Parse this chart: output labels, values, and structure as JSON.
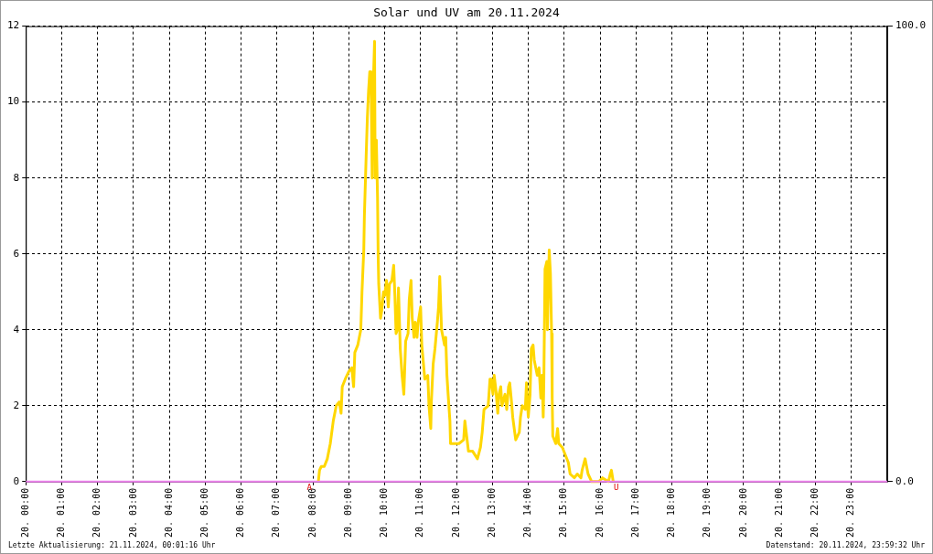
{
  "chart_data": {
    "type": "line",
    "title": "Solar und UV am 20.11.2024",
    "xlim": [
      "2024-11-20T00:00",
      "2024-11-21T00:00"
    ],
    "xticks": [
      {
        "value": "2024-11-20T00:00",
        "label": "20. 00:00"
      },
      {
        "value": "2024-11-20T01:00",
        "label": "20. 01:00"
      },
      {
        "value": "2024-11-20T02:00",
        "label": "20. 02:00"
      },
      {
        "value": "2024-11-20T03:00",
        "label": "20. 03:00"
      },
      {
        "value": "2024-11-20T04:00",
        "label": "20. 04:00"
      },
      {
        "value": "2024-11-20T05:00",
        "label": "20. 05:00"
      },
      {
        "value": "2024-11-20T06:00",
        "label": "20. 06:00"
      },
      {
        "value": "2024-11-20T07:00",
        "label": "20. 07:00"
      },
      {
        "value": "2024-11-20T08:00",
        "label": "20. 08:00"
      },
      {
        "value": "2024-11-20T09:00",
        "label": "20. 09:00"
      },
      {
        "value": "2024-11-20T10:00",
        "label": "20. 10:00"
      },
      {
        "value": "2024-11-20T11:00",
        "label": "20. 11:00"
      },
      {
        "value": "2024-11-20T12:00",
        "label": "20. 12:00"
      },
      {
        "value": "2024-11-20T13:00",
        "label": "20. 13:00"
      },
      {
        "value": "2024-11-20T14:00",
        "label": "20. 14:00"
      },
      {
        "value": "2024-11-20T15:00",
        "label": "20. 15:00"
      },
      {
        "value": "2024-11-20T16:00",
        "label": "20. 16:00"
      },
      {
        "value": "2024-11-20T17:00",
        "label": "20. 17:00"
      },
      {
        "value": "2024-11-20T18:00",
        "label": "20. 18:00"
      },
      {
        "value": "2024-11-20T19:00",
        "label": "20. 19:00"
      },
      {
        "value": "2024-11-20T20:00",
        "label": "20. 20:00"
      },
      {
        "value": "2024-11-20T21:00",
        "label": "20. 21:00"
      },
      {
        "value": "2024-11-20T22:00",
        "label": "20. 22:00"
      },
      {
        "value": "2024-11-20T23:00",
        "label": "20. 23:00"
      }
    ],
    "ylim": [
      0,
      12
    ],
    "yticks": [
      0,
      2,
      4,
      6,
      8,
      10,
      12
    ],
    "y2lim": [
      0,
      100
    ],
    "y2ticks": [
      {
        "value": 0,
        "label": "0.0"
      },
      {
        "value": 100,
        "label": "100.0"
      }
    ],
    "grid": true,
    "legend": false,
    "marker": "none",
    "line_style": "solid",
    "series": [
      {
        "color": "#ffd700",
        "x": [
          "2024-11-20T08:09",
          "2024-11-20T08:11",
          "2024-11-20T08:14",
          "2024-11-20T08:19",
          "2024-11-20T08:24",
          "2024-11-20T08:29",
          "2024-11-20T08:34",
          "2024-11-20T08:39",
          "2024-11-20T08:44",
          "2024-11-20T08:47",
          "2024-11-20T08:49",
          "2024-11-20T08:54",
          "2024-11-20T09:00",
          "2024-11-20T09:05",
          "2024-11-20T09:08",
          "2024-11-20T09:10",
          "2024-11-20T09:15",
          "2024-11-20T09:20",
          "2024-11-20T09:22",
          "2024-11-20T09:25",
          "2024-11-20T09:26",
          "2024-11-20T09:29",
          "2024-11-20T09:31",
          "2024-11-20T09:33",
          "2024-11-20T09:35",
          "2024-11-20T09:37",
          "2024-11-20T09:38",
          "2024-11-20T09:39",
          "2024-11-20T09:40",
          "2024-11-20T09:43",
          "2024-11-20T09:44",
          "2024-11-20T09:46",
          "2024-11-20T09:48",
          "2024-11-20T09:49",
          "2024-11-20T09:50",
          "2024-11-20T09:53",
          "2024-11-20T09:55",
          "2024-11-20T09:58",
          "2024-11-20T10:00",
          "2024-11-20T10:03",
          "2024-11-20T10:06",
          "2024-11-20T10:08",
          "2024-11-20T10:12",
          "2024-11-20T10:15",
          "2024-11-20T10:17",
          "2024-11-20T10:19",
          "2024-11-20T10:21",
          "2024-11-20T10:23",
          "2024-11-20T10:26",
          "2024-11-20T10:29",
          "2024-11-20T10:32",
          "2024-11-20T10:35",
          "2024-11-20T10:39",
          "2024-11-20T10:41",
          "2024-11-20T10:44",
          "2024-11-20T10:46",
          "2024-11-20T10:49",
          "2024-11-20T10:51",
          "2024-11-20T10:54",
          "2024-11-20T10:56",
          "2024-11-20T11:00",
          "2024-11-20T11:02",
          "2024-11-20T11:07",
          "2024-11-20T11:12",
          "2024-11-20T11:14",
          "2024-11-20T11:17",
          "2024-11-20T11:18",
          "2024-11-20T11:21",
          "2024-11-20T11:24",
          "2024-11-20T11:28",
          "2024-11-20T11:30",
          "2024-11-20T11:32",
          "2024-11-20T11:35",
          "2024-11-20T11:40",
          "2024-11-20T11:42",
          "2024-11-20T11:44",
          "2024-11-20T11:46",
          "2024-11-20T11:49",
          "2024-11-20T11:50",
          "2024-11-20T11:56",
          "2024-11-20T12:04",
          "2024-11-20T12:12",
          "2024-11-20T12:14",
          "2024-11-20T12:17",
          "2024-11-20T12:20",
          "2024-11-20T12:27",
          "2024-11-20T12:35",
          "2024-11-20T12:40",
          "2024-11-20T12:43",
          "2024-11-20T12:46",
          "2024-11-20T12:53",
          "2024-11-20T12:56",
          "2024-11-20T12:58",
          "2024-11-20T13:01",
          "2024-11-20T13:03",
          "2024-11-20T13:06",
          "2024-11-20T13:09",
          "2024-11-20T13:11",
          "2024-11-20T13:14",
          "2024-11-20T13:16",
          "2024-11-20T13:21",
          "2024-11-20T13:24",
          "2024-11-20T13:27",
          "2024-11-20T13:29",
          "2024-11-20T13:32",
          "2024-11-20T13:34",
          "2024-11-20T13:39",
          "2024-11-20T13:45",
          "2024-11-20T13:47",
          "2024-11-20T13:50",
          "2024-11-20T13:55",
          "2024-11-20T13:57",
          "2024-11-20T14:00",
          "2024-11-20T14:03",
          "2024-11-20T14:05",
          "2024-11-20T14:08",
          "2024-11-20T14:10",
          "2024-11-20T14:15",
          "2024-11-20T14:18",
          "2024-11-20T14:21",
          "2024-11-20T14:23",
          "2024-11-20T14:25",
          "2024-11-20T14:26",
          "2024-11-20T14:28",
          "2024-11-20T14:31",
          "2024-11-20T14:32",
          "2024-11-20T14:35",
          "2024-11-20T14:37",
          "2024-11-20T14:39",
          "2024-11-20T14:40",
          "2024-11-20T14:41",
          "2024-11-20T14:46",
          "2024-11-20T14:49",
          "2024-11-20T14:51",
          "2024-11-20T14:57",
          "2024-11-20T15:02",
          "2024-11-20T15:07",
          "2024-11-20T15:10",
          "2024-11-20T15:17",
          "2024-11-20T15:22",
          "2024-11-20T15:28",
          "2024-11-20T15:30",
          "2024-11-20T15:35",
          "2024-11-20T15:40",
          "2024-11-20T15:46",
          "2024-11-20T15:58",
          "2024-11-20T16:04",
          "2024-11-20T16:14",
          "2024-11-20T16:17",
          "2024-11-20T16:19",
          "2024-11-20T16:22"
        ],
        "values": [
          0,
          0.3,
          0.4,
          0.4,
          0.6,
          1.0,
          1.6,
          2.0,
          2.1,
          1.8,
          2.5,
          2.7,
          2.9,
          3.0,
          2.5,
          3.4,
          3.6,
          4.0,
          5.0,
          6.1,
          7.0,
          8.6,
          9.6,
          10.3,
          10.8,
          10.8,
          9.4,
          8.0,
          10.0,
          11.6,
          8.0,
          9.0,
          7.5,
          6.0,
          5.2,
          4.3,
          4.5,
          5.0,
          4.9,
          5.3,
          4.6,
          5.2,
          5.3,
          5.7,
          4.9,
          3.9,
          4.0,
          5.1,
          3.5,
          2.8,
          2.3,
          3.7,
          3.9,
          4.8,
          5.3,
          4.3,
          3.8,
          4.2,
          3.8,
          4.2,
          4.6,
          3.6,
          2.7,
          2.8,
          2.0,
          1.4,
          2.1,
          3.1,
          3.5,
          4.2,
          4.6,
          5.4,
          4.0,
          3.6,
          3.8,
          2.8,
          2.3,
          1.6,
          1.0,
          1.0,
          1.0,
          1.1,
          1.6,
          1.2,
          0.8,
          0.8,
          0.6,
          0.9,
          1.3,
          1.9,
          2.0,
          2.7,
          2.7,
          2.3,
          2.8,
          2.4,
          1.8,
          2.3,
          2.5,
          2.0,
          2.3,
          1.9,
          2.5,
          2.6,
          2.1,
          1.7,
          1.1,
          1.3,
          1.7,
          2.0,
          1.9,
          2.6,
          1.7,
          2.3,
          3.5,
          3.6,
          3.2,
          2.8,
          3.0,
          2.2,
          2.8,
          1.7,
          2.6,
          5.6,
          5.8,
          4.0,
          6.1,
          5.5,
          3.9,
          2.2,
          1.2,
          1.0,
          1.4,
          1.0,
          0.9,
          0.7,
          0.5,
          0.2,
          0.1,
          0.2,
          0.1,
          0.3,
          0.6,
          0.2,
          0.0,
          0.0,
          0.1,
          0.0,
          0.2,
          0.3,
          0.0
        ]
      },
      {
        "color": "#ee82ee",
        "axis": "y2",
        "x": [
          "2024-11-20T00:00",
          "2024-11-21T00:00"
        ],
        "values": [
          0,
          0
        ]
      }
    ],
    "annotations": [
      {
        "text": "A",
        "x": "2024-11-20T07:54",
        "y": 0
      },
      {
        "text": "U",
        "x": "2024-11-20T16:27",
        "y": 0
      },
      "Letzte Aktualisierung: 21.11.2024, 00:01:16 Uhr",
      "Datenstand: 20.11.2024, 23:59:32 Uhr"
    ]
  }
}
